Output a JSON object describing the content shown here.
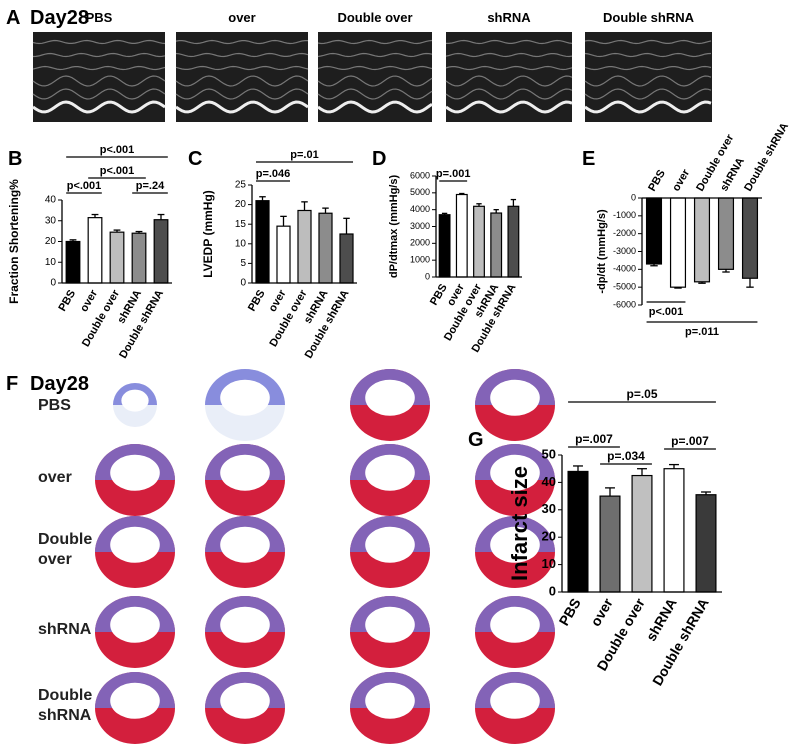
{
  "panel_a": {
    "label": "A",
    "title": "Day28",
    "groups": [
      "PBS",
      "over",
      "Double over",
      "shRNA",
      "Double shRNA"
    ]
  },
  "panel_f": {
    "label": "F",
    "title": "Day28",
    "rows": [
      "PBS",
      "over",
      "Double over",
      "shRNA",
      "Double shRNA"
    ]
  },
  "chart_data": [
    {
      "type": "bar",
      "panel_label": "B",
      "y_label": "Fraction Shortening%",
      "categories": [
        "PBS",
        "over",
        "Double over",
        "shRNA",
        "Double shRNA"
      ],
      "values": [
        20,
        31.5,
        24.5,
        24,
        30.5
      ],
      "errors": [
        0.8,
        1.5,
        1,
        0.8,
        2.5
      ],
      "colors": [
        "#000000",
        "#ffffff",
        "#bdbdbd",
        "#8c8c8c",
        "#4d4d4d"
      ],
      "ylim": [
        0,
        40
      ],
      "yticks": [
        0,
        10,
        20,
        30,
        40
      ],
      "annotations": [
        {
          "label": "p<.001",
          "from": 0,
          "to": 1
        },
        {
          "label": "p<.001",
          "from": 1,
          "to": 3
        },
        {
          "label": "p=.24",
          "from": 3,
          "to": 4
        },
        {
          "label": "p<.001",
          "from": 0,
          "to": 4
        }
      ]
    },
    {
      "type": "bar",
      "panel_label": "C",
      "y_label": "LVEDP (mmHg)",
      "categories": [
        "PBS",
        "over",
        "Double over",
        "shRNA",
        "Double shRNA"
      ],
      "values": [
        21,
        14.5,
        18.5,
        17.8,
        12.5
      ],
      "errors": [
        1,
        2.5,
        2.2,
        1.3,
        4
      ],
      "colors": [
        "#000000",
        "#ffffff",
        "#bdbdbd",
        "#8c8c8c",
        "#4d4d4d"
      ],
      "ylim": [
        0,
        25
      ],
      "yticks": [
        0,
        5,
        10,
        15,
        20,
        25
      ],
      "annotations": [
        {
          "label": "p=.046",
          "from": 0,
          "to": 1
        },
        {
          "label": "p=.01",
          "from": 0,
          "to": 4
        }
      ]
    },
    {
      "type": "bar",
      "panel_label": "D",
      "y_label": "dP/dtmax (mmHg/s)",
      "categories": [
        "PBS",
        "over",
        "Double over",
        "shRNA",
        "Double shRNA"
      ],
      "values": [
        3700,
        4900,
        4200,
        3800,
        4200
      ],
      "errors": [
        80,
        60,
        150,
        200,
        400
      ],
      "colors": [
        "#000000",
        "#ffffff",
        "#bdbdbd",
        "#8c8c8c",
        "#4d4d4d"
      ],
      "ylim": [
        0,
        6000
      ],
      "yticks": [
        0,
        1000,
        2000,
        3000,
        4000,
        5000,
        6000
      ],
      "annotations": [
        {
          "label": "p=.001",
          "from": 0,
          "to": 1
        }
      ]
    },
    {
      "type": "bar",
      "panel_label": "E",
      "y_label": "-dp/dt (mmHg/s)",
      "categories": [
        "PBS",
        "over",
        "Double over",
        "shRNA",
        "Double shRNA"
      ],
      "values": [
        -3700,
        -5000,
        -4700,
        -4000,
        -4500
      ],
      "errors": [
        100,
        50,
        80,
        150,
        500
      ],
      "colors": [
        "#000000",
        "#ffffff",
        "#bdbdbd",
        "#8c8c8c",
        "#4d4d4d"
      ],
      "ylim": [
        -6000,
        0
      ],
      "yticks": [
        -6000,
        -5000,
        -4000,
        -3000,
        -2000,
        -1000,
        0
      ],
      "annotations": [
        {
          "label": "p<.001",
          "from": 0,
          "to": 1
        },
        {
          "label": "p=.011",
          "from": 0,
          "to": 4
        }
      ]
    },
    {
      "type": "bar",
      "panel_label": "G",
      "y_label": "Infarct size",
      "categories": [
        "PBS",
        "over",
        "Double over",
        "shRNA",
        "Double shRNA"
      ],
      "values": [
        44,
        35,
        42.5,
        45,
        35.5
      ],
      "errors": [
        2,
        3,
        2.5,
        1.5,
        1
      ],
      "colors": [
        "#000000",
        "#6e6e6e",
        "#c0c0c0",
        "#ffffff",
        "#3a3a3a"
      ],
      "ylim": [
        0,
        50
      ],
      "yticks": [
        0,
        10,
        20,
        30,
        40,
        50
      ],
      "annotations": [
        {
          "label": "p=.007",
          "from": 0,
          "to": 1
        },
        {
          "label": "p=.034",
          "from": 1,
          "to": 2
        },
        {
          "label": "p=.007",
          "from": 3,
          "to": 4
        },
        {
          "label": "p=.05",
          "from": 0,
          "to": 4
        }
      ]
    }
  ]
}
